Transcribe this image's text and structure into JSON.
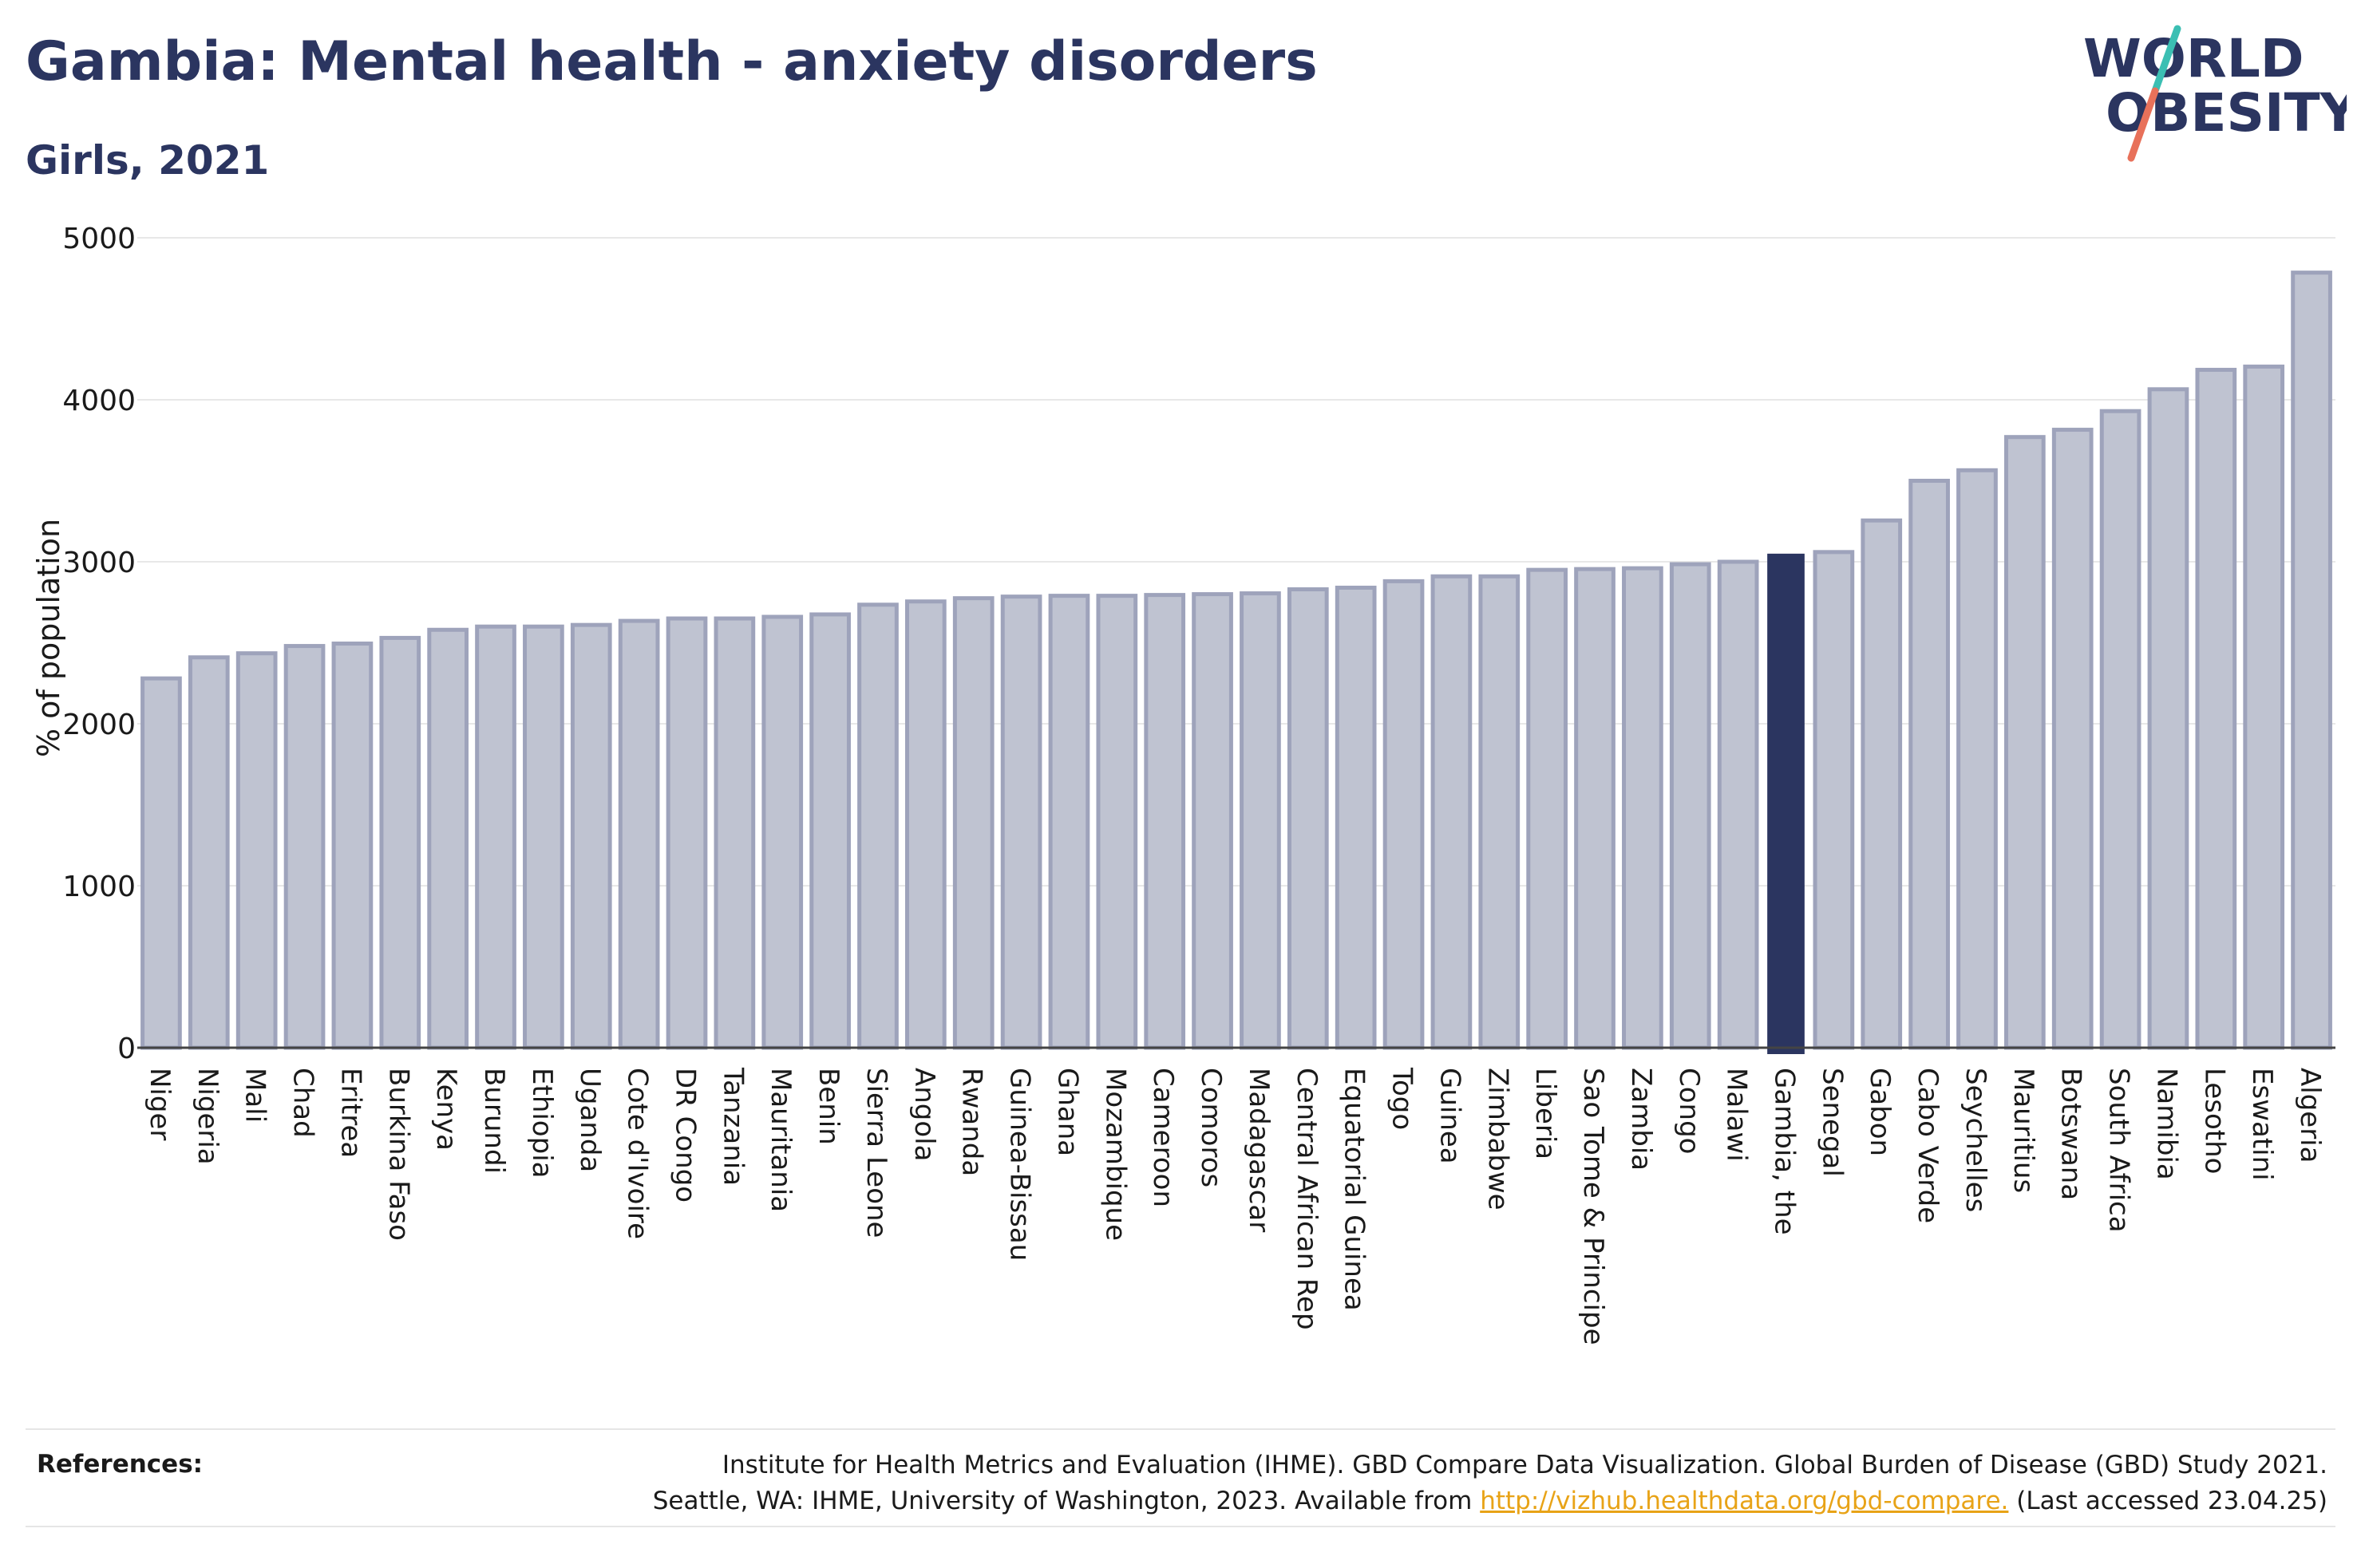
{
  "header": {
    "title": "Gambia: Mental health - anxiety disorders",
    "subtitle": "Girls, 2021"
  },
  "logo": {
    "line1": "WORLD",
    "line2": "OBESITY",
    "colors": {
      "text": "#2b3560",
      "slash_teal": "#3bbfb3",
      "slash_coral": "#e8715a"
    }
  },
  "colors": {
    "bar_fill": "#bfc3d1",
    "bar_stroke": "#9ea3bb",
    "highlight_fill": "#2b3560",
    "grid": "#e8e8e8",
    "axis": "#444444"
  },
  "chart_data": {
    "type": "bar",
    "title": "Gambia: Mental health - anxiety disorders",
    "subtitle": "Girls, 2021",
    "xlabel": "",
    "ylabel": "% of population",
    "ylim": [
      0,
      5000
    ],
    "yticks": [
      0,
      1000,
      2000,
      3000,
      4000,
      5000
    ],
    "grid": true,
    "highlight": "Gambia, the",
    "categories": [
      "Niger",
      "Nigeria",
      "Mali",
      "Chad",
      "Eritrea",
      "Burkina Faso",
      "Kenya",
      "Burundi",
      "Ethiopia",
      "Uganda",
      "Cote d'Ivoire",
      "DR Congo",
      "Tanzania",
      "Mauritania",
      "Benin",
      "Sierra Leone",
      "Angola",
      "Rwanda",
      "Guinea-Bissau",
      "Ghana",
      "Mozambique",
      "Cameroon",
      "Comoros",
      "Madagascar",
      "Central African Rep",
      "Equatorial Guinea",
      "Togo",
      "Guinea",
      "Zimbabwe",
      "Liberia",
      "Sao Tome & Principe",
      "Zambia",
      "Congo",
      "Malawi",
      "Gambia, the",
      "Senegal",
      "Gabon",
      "Cabo Verde",
      "Seychelles",
      "Mauritius",
      "Botswana",
      "South Africa",
      "Namibia",
      "Lesotho",
      "Eswatini",
      "Algeria"
    ],
    "values": [
      2280,
      2410,
      2435,
      2480,
      2495,
      2530,
      2580,
      2600,
      2600,
      2610,
      2635,
      2650,
      2650,
      2660,
      2675,
      2735,
      2755,
      2775,
      2785,
      2790,
      2790,
      2795,
      2800,
      2805,
      2830,
      2840,
      2880,
      2910,
      2910,
      2950,
      2955,
      2960,
      2985,
      3000,
      3050,
      3060,
      3255,
      3500,
      3565,
      3770,
      3815,
      3930,
      4065,
      4185,
      4205,
      4785
    ]
  },
  "references": {
    "label": "References:",
    "line1": "Institute for Health Metrics and Evaluation (IHME). GBD Compare Data Visualization. Global Burden of Disease (GBD) Study 2021.",
    "line2_pre": "Seattle, WA: IHME, University of Washington, 2023. Available from ",
    "link": "http://vizhub.healthdata.org/gbd-compare.",
    "line2_post": " (Last accessed 23.04.25)"
  }
}
